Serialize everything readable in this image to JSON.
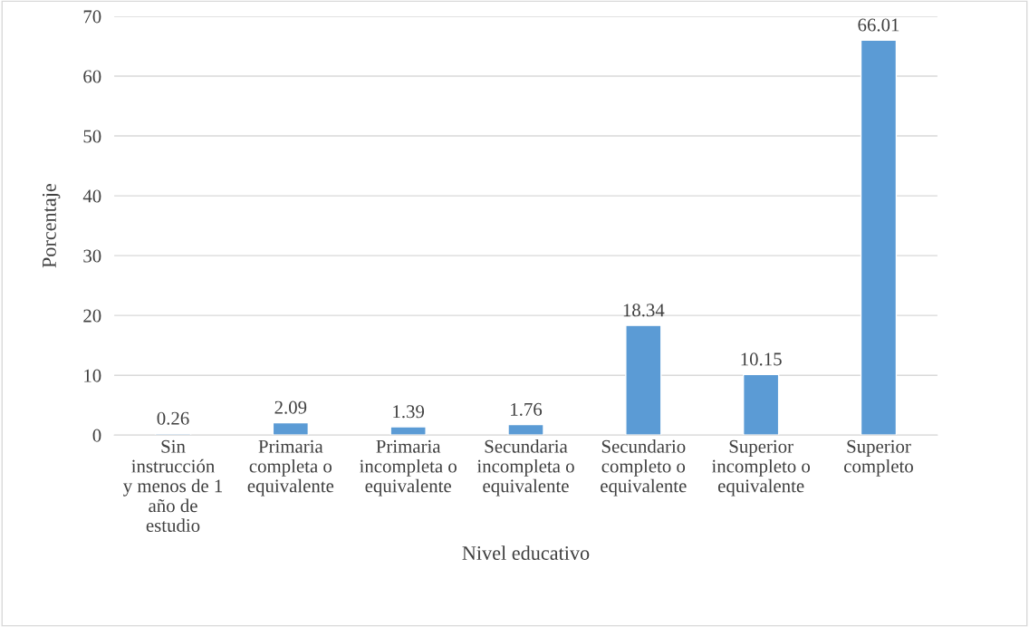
{
  "chart_data": {
    "type": "bar",
    "xlabel": "Nivel educativo",
    "ylabel": "Porcentaje",
    "categories": [
      "Sin instrucción y menos de 1 año de estudio",
      "Primaria completa o equivalente",
      "Primaria incompleta o equivalente",
      "Secundaria incompleta o equivalente",
      "Secundario completo o equivalente",
      "Superior incompleto o equivalente",
      "Superior completo"
    ],
    "values": [
      0.26,
      2.09,
      1.39,
      1.76,
      18.34,
      10.15,
      66.01
    ],
    "color": "#5b9bd5",
    "ylim": [
      0,
      70
    ],
    "yticks": [
      0,
      10,
      20,
      30,
      40,
      50,
      60,
      70
    ],
    "grid": "y",
    "data_labels": true
  }
}
